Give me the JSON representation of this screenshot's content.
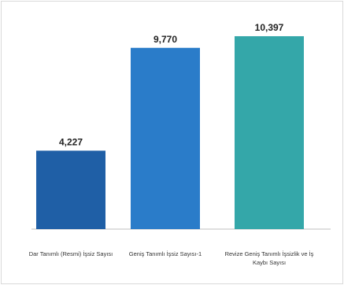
{
  "chart_data": {
    "type": "bar",
    "categories": [
      "Dar Tanımlı (Resmi) İşsiz Sayısı",
      "Geniş Tanımlı İşsiz Sayısı-1",
      "Revize Geniş Tanımlı İşsizlik ve İş Kaybı Sayısı"
    ],
    "category_label_lines": [
      [
        "Dar Tanımlı (Resmi) İşsiz Sayısı"
      ],
      [
        "Geniş Tanımlı İşsiz Sayısı-1"
      ],
      [
        "Revize Geniş Tanımlı İşsizlik ve İş",
        "Kaybı Sayısı"
      ]
    ],
    "values": [
      4227,
      9770,
      10397
    ],
    "value_labels": [
      "4,227",
      "9,770",
      "10,397"
    ],
    "colors": [
      "#1f5fa6",
      "#2a7cc9",
      "#34a7a9"
    ],
    "ylim": [
      0,
      11500
    ],
    "grid": false,
    "legend": "none",
    "title": "",
    "xlabel": "",
    "ylabel": ""
  }
}
